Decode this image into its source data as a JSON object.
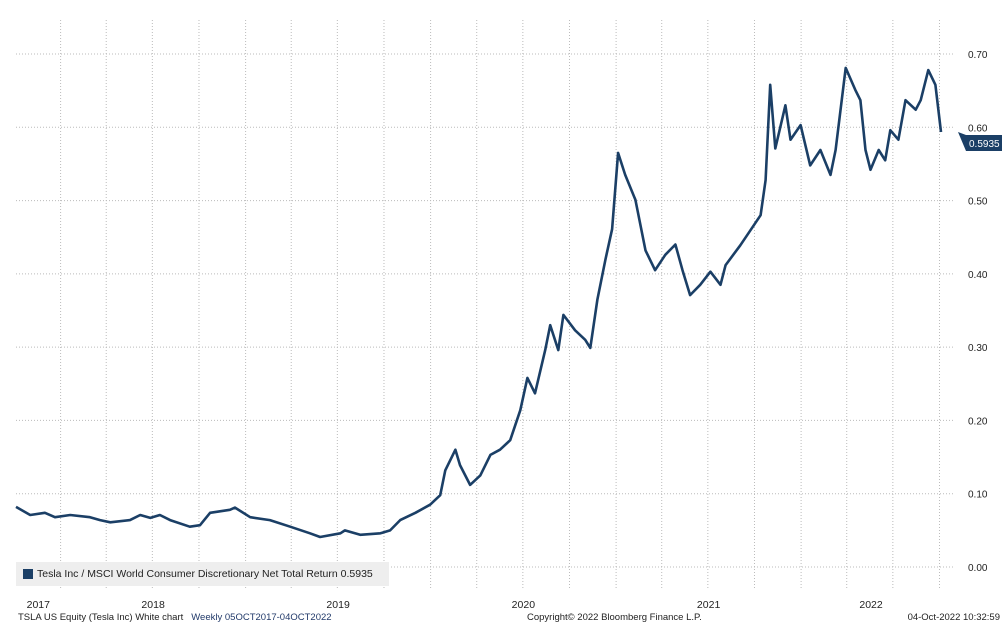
{
  "chart_data": {
    "type": "line",
    "title": "",
    "xlabel": "",
    "ylabel": "",
    "ylim": [
      0.0,
      0.7
    ],
    "xlim": [
      "2017-10-05",
      "2022-10-04"
    ],
    "y_ticks": [
      "0.00",
      "0.10",
      "0.20",
      "0.30",
      "0.40",
      "0.50",
      "0.60",
      "0.70"
    ],
    "x_ticks": [
      "2017",
      "2018",
      "2019",
      "2020",
      "2021",
      "2022"
    ],
    "grid": true,
    "legend_position": "bottom-left",
    "series": [
      {
        "name": "Tesla Inc / MSCI World Consumer Discretionary Net Total Return",
        "color": "#1b3f66",
        "last_value_label": "0.5935",
        "points": [
          [
            "2017-10-05",
            0.082
          ],
          [
            "2017-11-02",
            0.071
          ],
          [
            "2017-12-01",
            0.074
          ],
          [
            "2017-12-21",
            0.068
          ],
          [
            "2018-01-20",
            0.071
          ],
          [
            "2018-02-28",
            0.068
          ],
          [
            "2018-03-20",
            0.064
          ],
          [
            "2018-04-09",
            0.061
          ],
          [
            "2018-05-18",
            0.064
          ],
          [
            "2018-06-07",
            0.071
          ],
          [
            "2018-06-27",
            0.067
          ],
          [
            "2018-07-16",
            0.071
          ],
          [
            "2018-08-05",
            0.064
          ],
          [
            "2018-09-13",
            0.055
          ],
          [
            "2018-10-03",
            0.057
          ],
          [
            "2018-10-23",
            0.074
          ],
          [
            "2018-12-01",
            0.078
          ],
          [
            "2018-12-11",
            0.081
          ],
          [
            "2019-01-10",
            0.068
          ],
          [
            "2019-02-18",
            0.064
          ],
          [
            "2019-03-30",
            0.055
          ],
          [
            "2019-05-08",
            0.046
          ],
          [
            "2019-05-28",
            0.041
          ],
          [
            "2019-07-07",
            0.046
          ],
          [
            "2019-07-16",
            0.05
          ],
          [
            "2019-08-15",
            0.044
          ],
          [
            "2019-09-24",
            0.046
          ],
          [
            "2019-10-13",
            0.05
          ],
          [
            "2019-11-02",
            0.064
          ],
          [
            "2019-12-02",
            0.074
          ],
          [
            "2019-12-31",
            0.085
          ],
          [
            "2020-01-20",
            0.098
          ],
          [
            "2020-01-30",
            0.132
          ],
          [
            "2020-02-19",
            0.16
          ],
          [
            "2020-02-28",
            0.139
          ],
          [
            "2020-03-19",
            0.112
          ],
          [
            "2020-04-08",
            0.125
          ],
          [
            "2020-04-28",
            0.153
          ],
          [
            "2020-05-17",
            0.16
          ],
          [
            "2020-06-06",
            0.173
          ],
          [
            "2020-06-26",
            0.214
          ],
          [
            "2020-07-10",
            0.258
          ],
          [
            "2020-07-25",
            0.237
          ],
          [
            "2020-08-14",
            0.296
          ],
          [
            "2020-08-24",
            0.33
          ],
          [
            "2020-09-09",
            0.296
          ],
          [
            "2020-09-19",
            0.344
          ],
          [
            "2020-10-12",
            0.323
          ],
          [
            "2020-11-01",
            0.31
          ],
          [
            "2020-11-11",
            0.299
          ],
          [
            "2020-11-25",
            0.365
          ],
          [
            "2020-12-11",
            0.42
          ],
          [
            "2020-12-24",
            0.461
          ],
          [
            "2021-01-05",
            0.565
          ],
          [
            "2021-01-19",
            0.535
          ],
          [
            "2021-02-08",
            0.501
          ],
          [
            "2021-02-28",
            0.432
          ],
          [
            "2021-03-19",
            0.405
          ],
          [
            "2021-04-08",
            0.426
          ],
          [
            "2021-04-28",
            0.44
          ],
          [
            "2021-05-12",
            0.405
          ],
          [
            "2021-05-27",
            0.371
          ],
          [
            "2021-06-16",
            0.385
          ],
          [
            "2021-07-06",
            0.403
          ],
          [
            "2021-07-26",
            0.385
          ],
          [
            "2021-08-05",
            0.412
          ],
          [
            "2021-09-03",
            0.439
          ],
          [
            "2021-10-13",
            0.48
          ],
          [
            "2021-10-23",
            0.528
          ],
          [
            "2021-11-01",
            0.658
          ],
          [
            "2021-11-11",
            0.571
          ],
          [
            "2021-12-01",
            0.63
          ],
          [
            "2021-12-11",
            0.583
          ],
          [
            "2021-12-31",
            0.603
          ],
          [
            "2022-01-19",
            0.548
          ],
          [
            "2022-02-08",
            0.569
          ],
          [
            "2022-02-28",
            0.535
          ],
          [
            "2022-03-10",
            0.569
          ],
          [
            "2022-03-30",
            0.681
          ],
          [
            "2022-04-18",
            0.651
          ],
          [
            "2022-04-28",
            0.637
          ],
          [
            "2022-05-08",
            0.569
          ],
          [
            "2022-05-18",
            0.542
          ],
          [
            "2022-06-03",
            0.569
          ],
          [
            "2022-06-16",
            0.555
          ],
          [
            "2022-06-26",
            0.596
          ],
          [
            "2022-07-12",
            0.583
          ],
          [
            "2022-07-26",
            0.637
          ],
          [
            "2022-08-15",
            0.624
          ],
          [
            "2022-08-25",
            0.637
          ],
          [
            "2022-09-09",
            0.678
          ],
          [
            "2022-09-23",
            0.658
          ],
          [
            "2022-10-04",
            0.5935
          ]
        ]
      }
    ]
  },
  "legend": {
    "label": "Tesla Inc / MSCI World Consumer Discretionary Net Total Return 0.5935"
  },
  "footer": {
    "left": "TSLA US Equity (Tesla Inc) White chart",
    "range": "Weekly 05OCT2017-04OCT2022",
    "copyright": "Copyright© 2022 Bloomberg Finance L.P.",
    "timestamp": "04-Oct-2022 10:32:59"
  }
}
